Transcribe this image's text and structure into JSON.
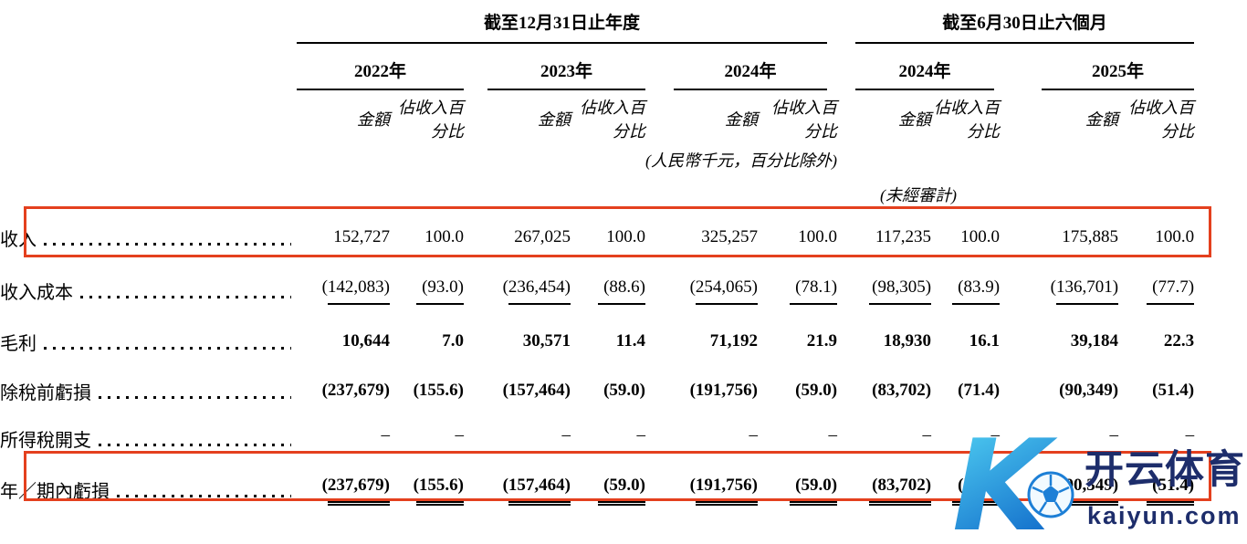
{
  "table": {
    "col_groups": [
      {
        "title": "截至12月31日止年度",
        "years": [
          {
            "label": "2022年"
          },
          {
            "label": "2023年"
          },
          {
            "label": "2024年"
          }
        ]
      },
      {
        "title": "截至6月30日止六個月",
        "years": [
          {
            "label": "2024年"
          },
          {
            "label": "2025年"
          }
        ]
      }
    ],
    "amount_header": "金額",
    "pct_header": "佔收入百分比",
    "unit_note": "(人民幣千元，百分比除外)",
    "unaudited_note": "(未經審計)",
    "rows": [
      {
        "label": "收入",
        "bold": false,
        "highlighted": true,
        "rule": "none",
        "values": [
          "152,727",
          "100.0",
          "267,025",
          "100.0",
          "325,257",
          "100.0",
          "117,235",
          "100.0",
          "175,885",
          "100.0"
        ]
      },
      {
        "label": "收入成本",
        "bold": false,
        "highlighted": false,
        "rule": "single",
        "values": [
          "(142,083)",
          "(93.0)",
          "(236,454)",
          "(88.6)",
          "(254,065)",
          "(78.1)",
          "(98,305)",
          "(83.9)",
          "(136,701)",
          "(77.7)"
        ]
      },
      {
        "label": "毛利",
        "bold": true,
        "highlighted": false,
        "rule": "none",
        "values": [
          "10,644",
          "7.0",
          "30,571",
          "11.4",
          "71,192",
          "21.9",
          "18,930",
          "16.1",
          "39,184",
          "22.3"
        ]
      },
      {
        "label": "除稅前虧損",
        "bold": true,
        "highlighted": false,
        "rule": "none",
        "values": [
          "(237,679)",
          "(155.6)",
          "(157,464)",
          "(59.0)",
          "(191,756)",
          "(59.0)",
          "(83,702)",
          "(71.4)",
          "(90,349)",
          "(51.4)"
        ]
      },
      {
        "label": "所得稅開支",
        "bold": false,
        "highlighted": false,
        "rule": "single",
        "values": [
          "–",
          "–",
          "–",
          "–",
          "–",
          "–",
          "–",
          "–",
          "–",
          "–"
        ]
      },
      {
        "label": "年／期內虧損",
        "bold": true,
        "highlighted": true,
        "rule": "double",
        "values": [
          "(237,679)",
          "(155.6)",
          "(157,464)",
          "(59.0)",
          "(191,756)",
          "(59.0)",
          "(83,702)",
          "(71.4)",
          "(90,349)",
          "(51.4)"
        ]
      }
    ]
  },
  "highlight": {
    "border_color": "#e4401e"
  },
  "watermark": {
    "logo_letter": "K",
    "brand_cn": "开云体育",
    "brand_domain": "kaiyun.com",
    "navy_color": "#1d2d6b",
    "gradient_start": "#55d7f5",
    "gradient_end": "#1470cc"
  }
}
